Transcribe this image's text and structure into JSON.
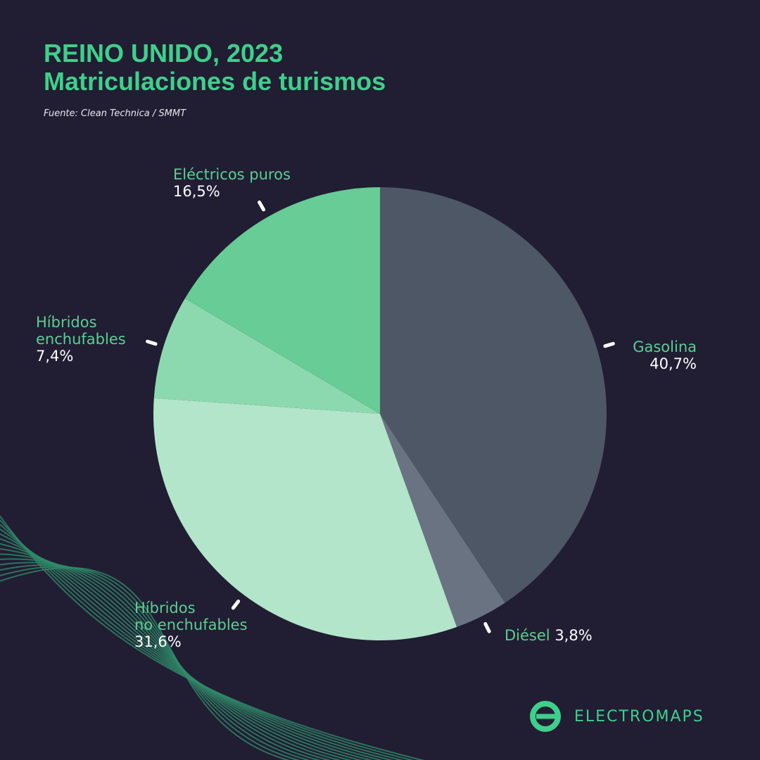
{
  "chart_data": {
    "type": "pie",
    "title": "REINO UNIDO, 2023",
    "subtitle": "Matriculaciones de turismos",
    "source": "Fuente: Clean Technica / SMMT",
    "categories": [
      "Gasolina",
      "Diésel",
      "Híbridos\nno enchufables",
      "Híbridos\nenchufables",
      "Eléctricos puros"
    ],
    "values": [
      40.7,
      3.8,
      31.6,
      7.4,
      16.5
    ],
    "value_labels": [
      "40,7%",
      "3,8%",
      "31,6%",
      "7,4%",
      "16,5%"
    ],
    "colors": [
      "#4d5766",
      "#6a7382",
      "#b2e5c9",
      "#8dd9af",
      "#67cc95"
    ]
  },
  "brand": "ELECTROMAPS"
}
